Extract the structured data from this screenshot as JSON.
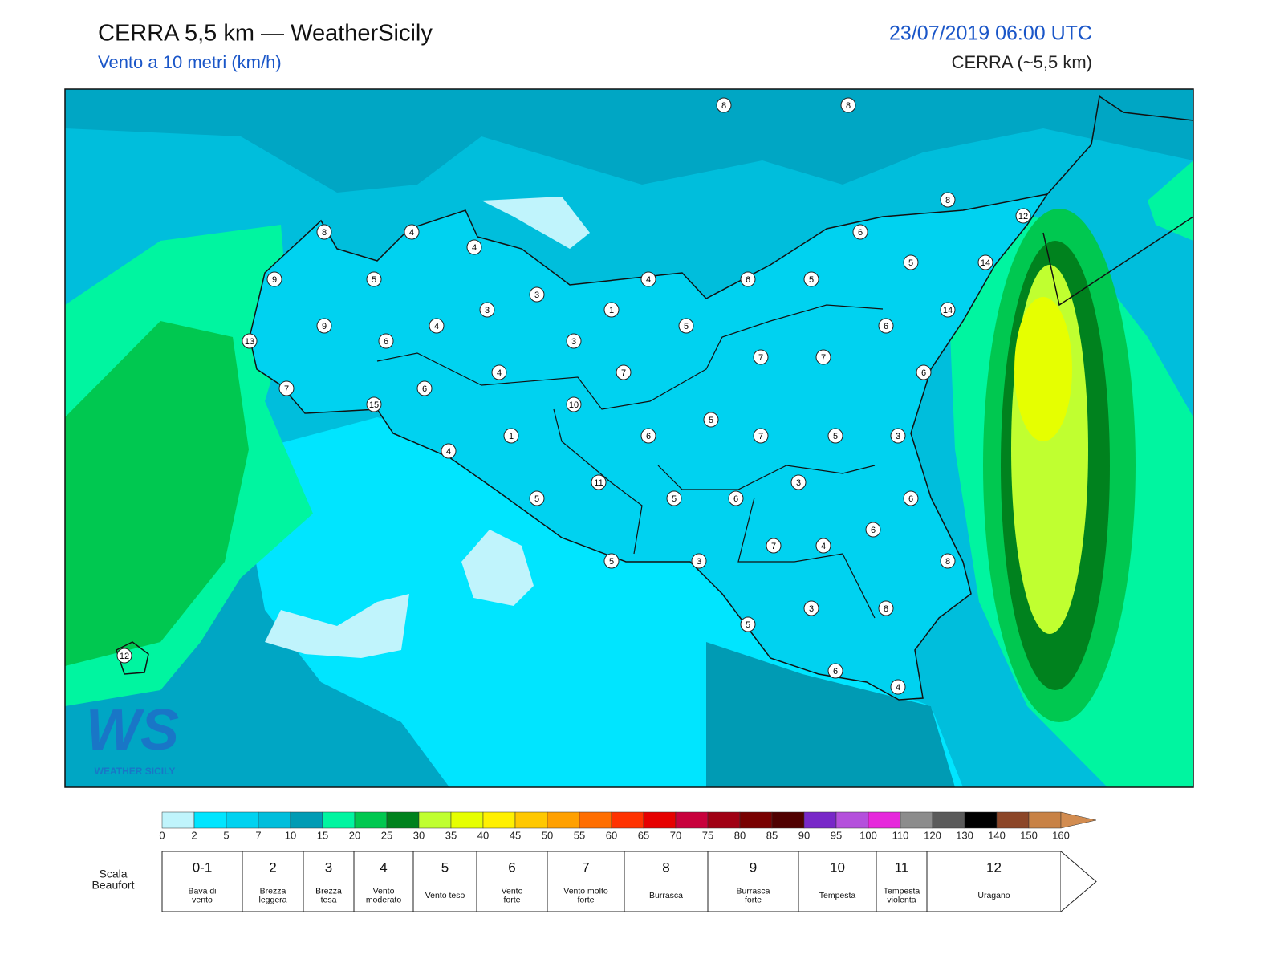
{
  "header": {
    "title": "CERRA 5,5 km — WeatherSicily",
    "subtitle": "Vento a 10 metri (km/h)",
    "datetime": "23/07/2019 06:00 UTC",
    "model": "CERRA (~5,5 km)"
  },
  "logo": {
    "mark": "WS",
    "name": "WEATHER SICILY"
  },
  "stations": [
    8,
    8,
    8,
    12,
    8,
    4,
    4,
    6,
    5,
    14,
    9,
    5,
    4,
    6,
    5,
    3,
    3,
    1,
    14,
    9,
    4,
    5,
    6,
    13,
    6,
    3,
    7,
    7,
    4,
    7,
    6,
    7,
    6,
    15,
    10,
    5,
    1,
    6,
    7,
    5,
    3,
    4,
    11,
    3,
    5,
    5,
    6,
    6,
    6,
    7,
    4,
    5,
    3,
    8,
    3,
    8,
    5,
    6,
    4,
    12
  ],
  "colorbar": {
    "ticks": [
      0,
      2,
      5,
      7,
      10,
      15,
      20,
      25,
      30,
      35,
      40,
      45,
      50,
      55,
      60,
      65,
      70,
      75,
      80,
      85,
      90,
      95,
      100,
      110,
      120,
      130,
      140,
      150,
      160
    ],
    "colors": [
      "#c0f4fc",
      "#00e5ff",
      "#00d2f0",
      "#00bedc",
      "#009bb4",
      "#00f5a0",
      "#00c850",
      "#00821e",
      "#c0ff30",
      "#e6ff00",
      "#fff000",
      "#ffc800",
      "#ffa000",
      "#ff6e00",
      "#ff3200",
      "#e60000",
      "#c8003c",
      "#a00014",
      "#780000",
      "#500000",
      "#7828c8",
      "#b450dc",
      "#e628dc",
      "#8c8c8c",
      "#5a5a5a",
      "#000000",
      "#8c4628",
      "#c88246"
    ],
    "arrow_color": "#d28c50"
  },
  "beaufort": {
    "title": [
      "Scala",
      "Beaufort"
    ],
    "scale": [
      {
        "force": "0-1",
        "label": [
          "Bava di",
          "vento"
        ]
      },
      {
        "force": "2",
        "label": [
          "Brezza",
          "leggera"
        ]
      },
      {
        "force": "3",
        "label": [
          "Brezza",
          "tesa"
        ]
      },
      {
        "force": "4",
        "label": [
          "Vento",
          "moderato"
        ]
      },
      {
        "force": "5",
        "label": [
          "Vento teso"
        ]
      },
      {
        "force": "6",
        "label": [
          "Vento",
          "forte"
        ]
      },
      {
        "force": "7",
        "label": [
          "Vento molto",
          "forte"
        ]
      },
      {
        "force": "8",
        "label": [
          "Burrasca"
        ]
      },
      {
        "force": "9",
        "label": [
          "Burrasca",
          "forte"
        ]
      },
      {
        "force": "10",
        "label": [
          "Tempesta"
        ]
      },
      {
        "force": "11",
        "label": [
          "Tempesta",
          "violenta"
        ]
      },
      {
        "force": "12",
        "label": [
          "Uragano"
        ]
      }
    ]
  }
}
